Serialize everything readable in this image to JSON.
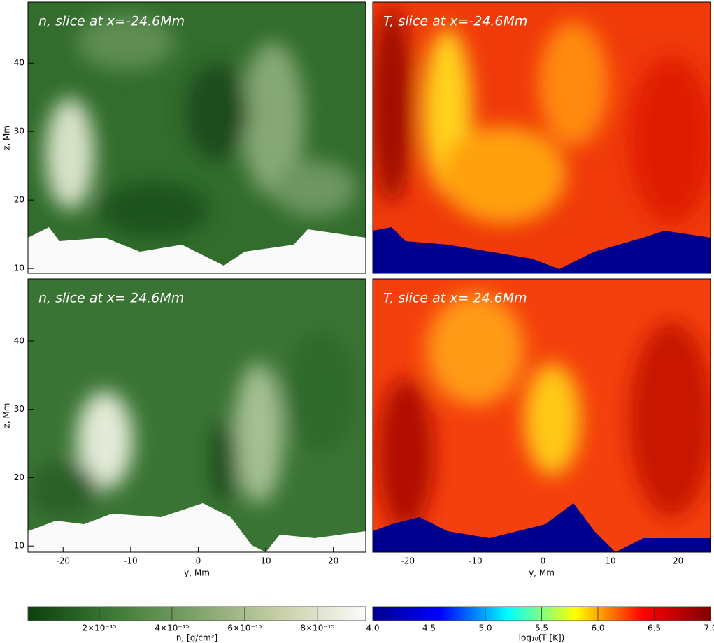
{
  "chart_data": [
    {
      "type": "heatmap",
      "title": "n, slice at x=-24.6Mm",
      "ylabel": "z, Mm",
      "xlim": [
        -25.2,
        24.8
      ],
      "ylim": [
        9.3,
        48.9
      ],
      "yticks": [
        10,
        20,
        30,
        40
      ]
    },
    {
      "type": "heatmap",
      "title": "T, slice at x=-24.6Mm",
      "xlim": [
        -25.2,
        24.8
      ],
      "ylim": [
        9.3,
        48.9
      ]
    },
    {
      "type": "heatmap",
      "title": "n, slice at x= 24.6Mm",
      "xlabel": "y, Mm",
      "ylabel": "z, Mm",
      "xlim": [
        -25.2,
        24.8
      ],
      "ylim": [
        9.1,
        49.1
      ],
      "xticks": [
        -20,
        -10,
        0,
        10,
        20
      ],
      "yticks": [
        10,
        20,
        30,
        40
      ]
    },
    {
      "type": "heatmap",
      "title": "T, slice at x= 24.6Mm",
      "xlabel": "y, Mm",
      "xlim": [
        -25.2,
        24.8
      ],
      "ylim": [
        9.1,
        49.1
      ],
      "xticks": [
        -20,
        -10,
        0,
        10,
        20
      ]
    }
  ],
  "colorbars": [
    {
      "label": "n, [g/cm³]",
      "lim": [
        4e-17,
        9.33e-15
      ],
      "ticks": [
        {
          "value": 2e-15,
          "label": "2×10⁻¹⁵"
        },
        {
          "value": 4e-15,
          "label": "4×10⁻¹⁵"
        },
        {
          "value": 6e-15,
          "label": "6×10⁻¹⁵"
        },
        {
          "value": 8e-15,
          "label": "8×10⁻¹⁵"
        }
      ],
      "colors": [
        "#0b3f0c",
        "#3d7a35",
        "#7fa36a",
        "#c9d0a8",
        "#fbfbfb"
      ]
    },
    {
      "label": "log₁₀(T [K])",
      "lim": [
        4,
        7
      ],
      "ticks": [
        {
          "value": 4,
          "label": "4.0"
        },
        {
          "value": 4.5,
          "label": "4.5"
        },
        {
          "value": 5,
          "label": "5.0"
        },
        {
          "value": 5.5,
          "label": "5.5"
        },
        {
          "value": 6,
          "label": "6.0"
        },
        {
          "value": 6.5,
          "label": "6.5"
        },
        {
          "value": 7,
          "label": "7.0"
        }
      ],
      "colors": [
        "#00008f",
        "#0000ff",
        "#00ffff",
        "#ffff00",
        "#ff0000",
        "#800000"
      ]
    }
  ]
}
